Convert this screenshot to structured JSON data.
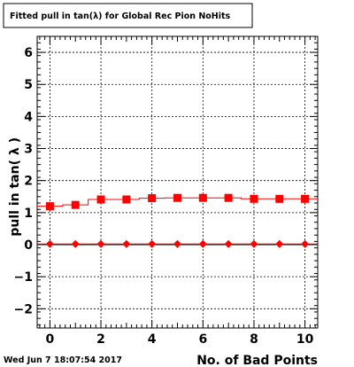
{
  "title": "Fitted pull in tan(λ) for Global Rec Pion NoHits",
  "timestamp": "Wed Jun  7 18:07:54 2017",
  "colors": {
    "red": "#ff0000",
    "black": "#000000",
    "grid": "#000000"
  },
  "chart_data": {
    "type": "scatter",
    "title": "Fitted pull in tan(λ) for Global Rec Pion NoHits",
    "xlabel": "No. of Bad Points",
    "ylabel": "pull in tan( λ )",
    "xlim": [
      -0.5,
      10.5
    ],
    "ylim": [
      -2.6,
      6.5
    ],
    "grid": true,
    "x_ticks": [
      0,
      2,
      4,
      6,
      8,
      10
    ],
    "y_ticks": [
      -2,
      -1,
      0,
      1,
      2,
      3,
      4,
      5,
      6
    ],
    "x": [
      0,
      1,
      2,
      3,
      4,
      5,
      6,
      7,
      8,
      9,
      10
    ],
    "series": [
      {
        "marker": "square",
        "color": "#ff0000",
        "values": [
          1.2,
          1.24,
          1.41,
          1.41,
          1.45,
          1.46,
          1.46,
          1.46,
          1.43,
          1.43,
          1.43
        ]
      },
      {
        "marker": "diamond",
        "color": "#ff0000",
        "values": [
          0.02,
          0.02,
          0.02,
          0.02,
          0.02,
          0.02,
          0.02,
          0.02,
          0.02,
          0.02,
          0.02
        ]
      }
    ]
  }
}
